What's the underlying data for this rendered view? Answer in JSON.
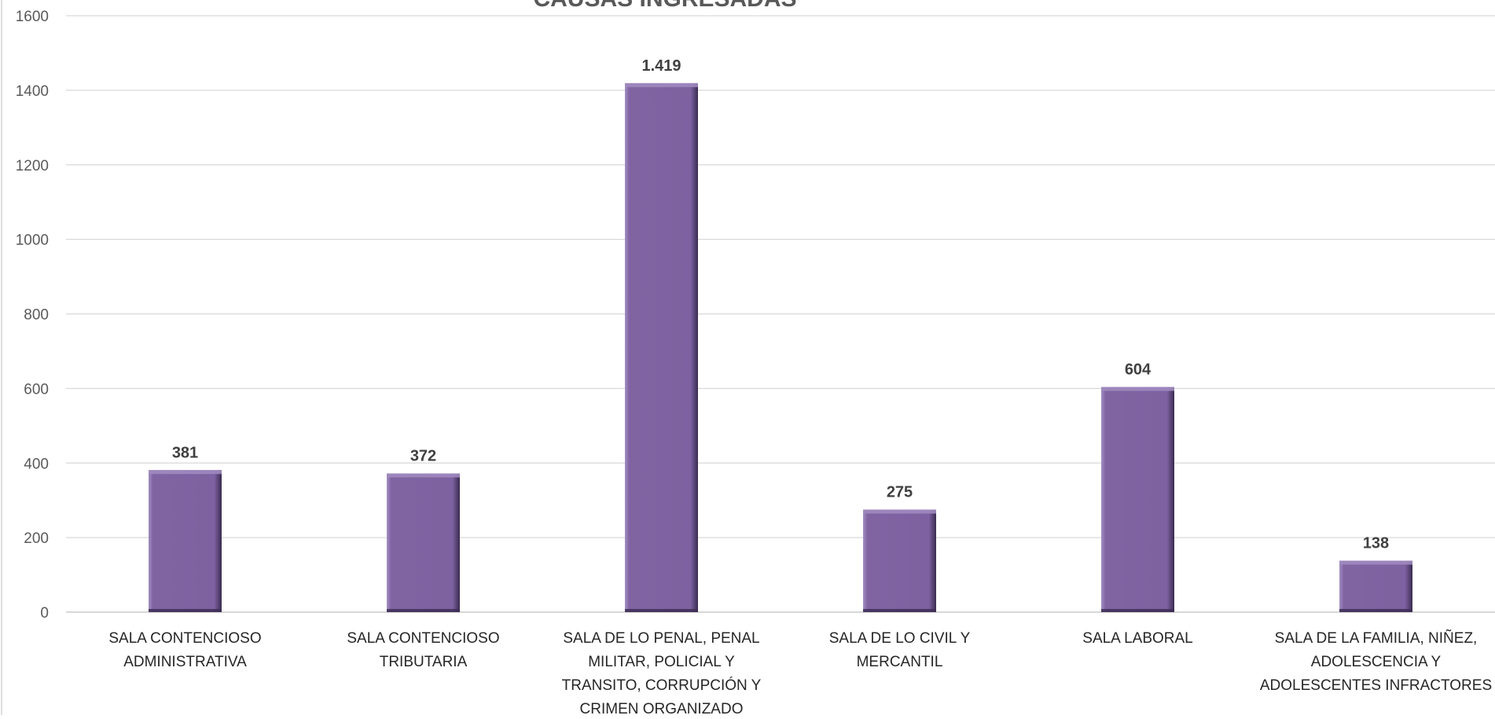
{
  "chart_data": {
    "type": "bar",
    "title": "CAUSAS INGRESADAS",
    "categories": [
      [
        "SALA CONTENCIOSO",
        "ADMINISTRATIVA"
      ],
      [
        "SALA CONTENCIOSO",
        "TRIBUTARIA"
      ],
      [
        "SALA DE LO PENAL, PENAL",
        "MILITAR, POLICIAL Y",
        "TRANSITO, CORRUPCIÓN Y",
        "CRIMEN ORGANIZADO"
      ],
      [
        "SALA DE LO CIVIL Y",
        "MERCANTIL"
      ],
      [
        "SALA LABORAL"
      ],
      [
        "SALA DE LA FAMILIA, NIÑEZ,",
        "ADOLESCENCIA Y",
        "ADOLESCENTES INFRACTORES"
      ]
    ],
    "values": [
      381,
      372,
      1419,
      275,
      604,
      138
    ],
    "data_labels": [
      "381",
      "372",
      "1.419",
      "275",
      "604",
      "138"
    ],
    "y_ticks": [
      "0",
      "200",
      "400",
      "600",
      "800",
      "1000",
      "1200",
      "1400",
      "1600"
    ],
    "ylim": [
      0,
      1600
    ],
    "grid": true,
    "legend": "none",
    "colors": {
      "bar": "#8064A2",
      "bar_dark": "#3D2E55",
      "bar_light": "#A08ABF",
      "grid": "#D9D9D9",
      "axis": "#BFBFBF"
    }
  }
}
